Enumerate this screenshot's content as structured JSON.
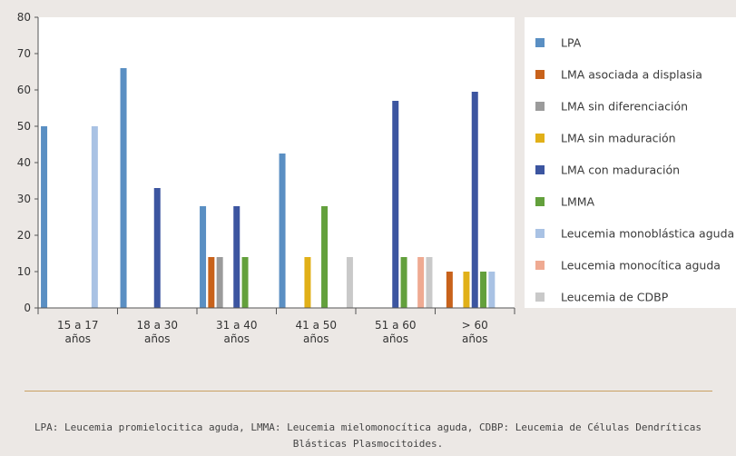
{
  "chart_data": {
    "type": "bar",
    "categories": [
      [
        "15 a 17",
        "años"
      ],
      [
        "18 a 30",
        "años"
      ],
      [
        "31 a 40",
        "años"
      ],
      [
        "41 a 50",
        "años"
      ],
      [
        "51 a 60",
        "años"
      ],
      [
        "> 60",
        "años"
      ]
    ],
    "ylim": [
      0,
      80
    ],
    "yticks": [
      0,
      10,
      20,
      30,
      40,
      50,
      60,
      70,
      80
    ],
    "grid": false,
    "legend_position": "right",
    "series": [
      {
        "name": "LPA",
        "color": "#5a8fc3",
        "values": [
          50,
          66,
          28,
          42.5,
          0,
          0
        ]
      },
      {
        "name": "LMA asociada a displasia",
        "color": "#c8621b",
        "values": [
          0,
          0,
          14,
          0,
          0,
          10
        ]
      },
      {
        "name": "LMA sin diferenciación",
        "color": "#9b9b9b",
        "values": [
          0,
          0,
          14,
          0,
          0,
          0
        ]
      },
      {
        "name": "LMA sin maduración",
        "color": "#e1b018",
        "values": [
          0,
          0,
          0,
          14,
          0,
          10
        ]
      },
      {
        "name": "LMA con maduración",
        "color": "#3c55a0",
        "values": [
          0,
          33,
          28,
          0,
          57,
          59.5
        ]
      },
      {
        "name": "LMMA",
        "color": "#63a03c",
        "values": [
          0,
          0,
          14,
          28,
          14,
          10
        ]
      },
      {
        "name": "Leucemia monoblástica aguda",
        "color": "#a9c2e4",
        "values": [
          50,
          0,
          0,
          0,
          0,
          10
        ]
      },
      {
        "name": "Leucemia monocítica aguda",
        "color": "#efaa92",
        "values": [
          0,
          0,
          0,
          0,
          14,
          0
        ]
      },
      {
        "name": "Leucemia de CDBP",
        "color": "#c9c9c9",
        "values": [
          0,
          0,
          0,
          14,
          14,
          0
        ]
      }
    ]
  },
  "footnote": "LPA: Leucemia promielocitica aguda, LMMA: Leucemia mielomonocítica aguda, CDBP: Leucemia de Células Dendríticas Blásticas Plasmocitoides."
}
